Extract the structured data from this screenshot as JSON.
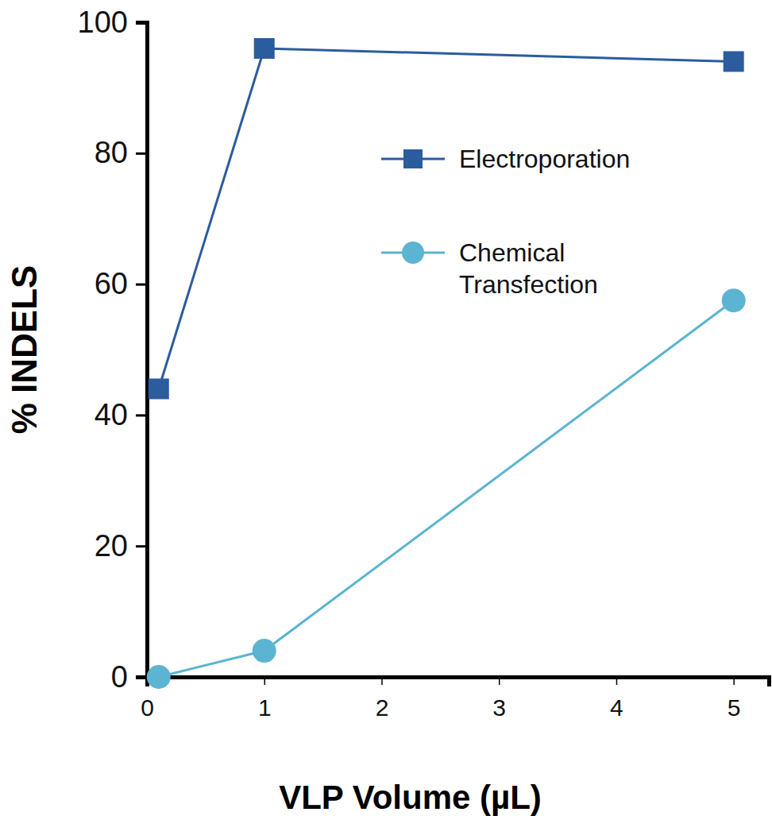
{
  "chart_data": {
    "type": "line",
    "x_label": "VLP Volume (µL)",
    "y_label": "% INDELS",
    "x": [
      0.1,
      1,
      5
    ],
    "series": [
      {
        "name": "Electroporation",
        "color": "#2b5c9e",
        "marker": "square",
        "values": [
          44,
          96,
          94
        ]
      },
      {
        "name": "Chemical Transfection",
        "color": "#5bb4d2",
        "marker": "circle",
        "values": [
          0,
          4,
          57.5
        ]
      }
    ],
    "xlim": [
      0,
      5.3
    ],
    "xticks": [
      0,
      1,
      2,
      3,
      4,
      5
    ],
    "ylim": [
      0,
      100
    ],
    "yticks": [
      0,
      20,
      40,
      60,
      80,
      100
    ],
    "grid": false,
    "legend": "upper right"
  }
}
